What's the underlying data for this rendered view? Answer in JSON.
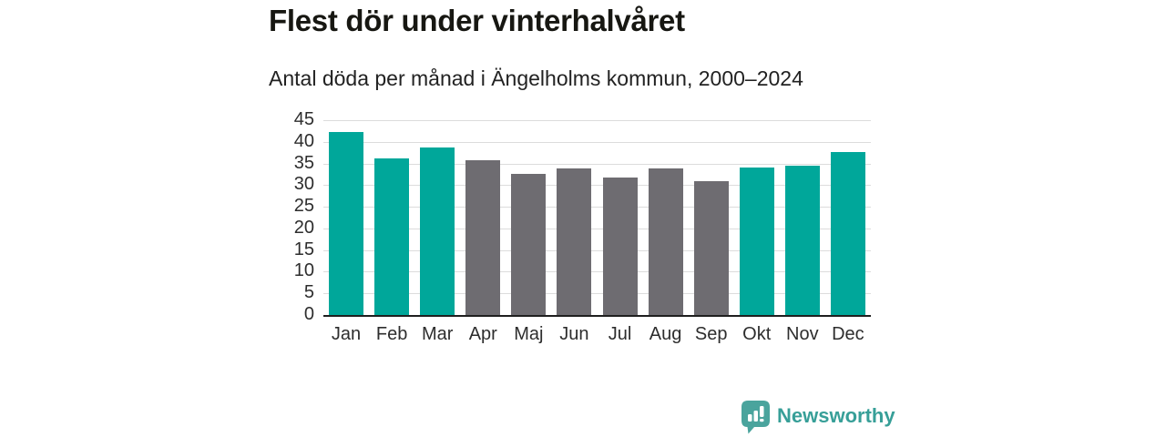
{
  "header": {
    "title": "Flest dör under vinterhalvåret",
    "subtitle": "Antal döda per månad i Ängelholms kommun, 2000–2024"
  },
  "chart_data": {
    "type": "bar",
    "title": "Flest dör under vinterhalvåret",
    "subtitle": "Antal döda per månad i Ängelholms kommun, 2000–2024",
    "categories": [
      "Jan",
      "Feb",
      "Mar",
      "Apr",
      "Maj",
      "Jun",
      "Jul",
      "Aug",
      "Sep",
      "Okt",
      "Nov",
      "Dec"
    ],
    "values": [
      42.2,
      36.2,
      38.8,
      35.8,
      32.5,
      33.9,
      31.7,
      33.9,
      31.0,
      34.0,
      34.5,
      37.6
    ],
    "highlighted_categories": [
      "Jan",
      "Feb",
      "Mar",
      "Okt",
      "Nov",
      "Dec"
    ],
    "highlight_color": "#00a79a",
    "muted_color": "#6e6c71",
    "xlabel": "",
    "ylabel": "",
    "ylim": [
      0,
      45
    ],
    "yticks": [
      0,
      5,
      10,
      15,
      20,
      25,
      30,
      35,
      40,
      45
    ],
    "grid": true,
    "gridline_color": "#dcdcdc",
    "axis_line_color": "#1f1f1f",
    "legend_position": "none"
  },
  "footer": {
    "brand": "Newsworthy",
    "brand_color": "#379f98",
    "logo_icon": "bar-chart-speech-bubble-icon",
    "logo_bubble_color": "#4aa49d"
  }
}
